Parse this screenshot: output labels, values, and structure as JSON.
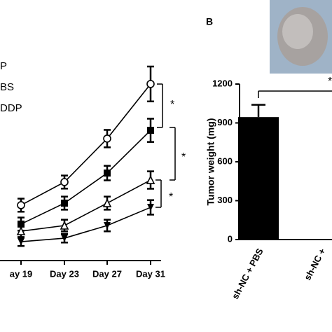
{
  "chart_data": [
    {
      "type": "line",
      "categories": [
        "ay 19",
        "Day 23",
        "Day 27",
        "Day 31"
      ],
      "ylim": [
        0,
        1600
      ],
      "series": [
        {
          "name": "P",
          "color": "#000000",
          "marker": "circle-open",
          "values": [
            381,
            540,
            839,
            1215
          ],
          "errors": [
            45,
            45,
            60,
            120
          ]
        },
        {
          "name": "BS",
          "color": "#000000",
          "marker": "square",
          "values": [
            251,
            395,
            602,
            896
          ],
          "errors": [
            45,
            45,
            50,
            80
          ]
        },
        {
          "name": "DDP",
          "color": "#000000",
          "marker": "triangle-open",
          "values": [
            202,
            241,
            395,
            554
          ],
          "errors": [
            40,
            40,
            45,
            60
          ]
        },
        {
          "name": null,
          "color": "#000000",
          "marker": "triangle-down",
          "values": [
            130,
            154,
            241,
            366
          ],
          "errors": [
            30,
            30,
            40,
            50
          ]
        }
      ],
      "annotations": [
        "*",
        "*",
        "*"
      ]
    },
    {
      "type": "bar",
      "panel_label": "B",
      "y_label": "Tumor weight (mg)",
      "categories": [
        "sh-NC + PBS",
        "sh-NC +"
      ],
      "values": [
        945,
        null
      ],
      "errors": [
        95,
        null
      ],
      "color": "#000000",
      "ylim": [
        0,
        1200
      ],
      "yticks": [
        0,
        300,
        600,
        900,
        1200
      ],
      "annotations": [
        "*"
      ]
    }
  ]
}
